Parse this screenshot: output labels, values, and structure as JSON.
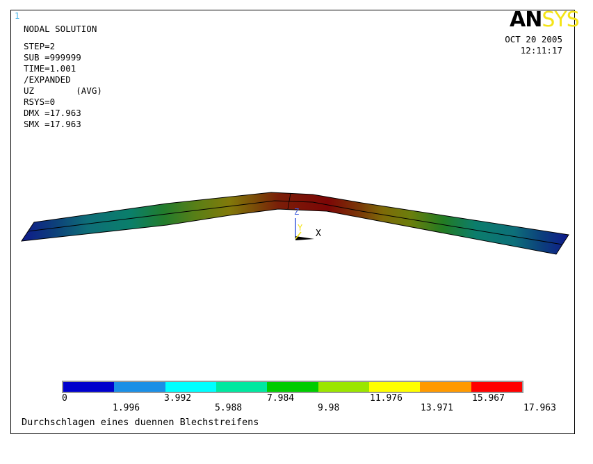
{
  "window_number": "1",
  "logo": {
    "part1": "AN",
    "part2": "SYS"
  },
  "info": {
    "title": "NODAL SOLUTION",
    "lines": [
      "STEP=2",
      "SUB =999999",
      "TIME=1.001",
      "/EXPANDED",
      "UZ        (AVG)",
      "RSYS=0",
      "DMX =17.963",
      "SMX =17.963"
    ]
  },
  "datetime": {
    "date": "OCT 20 2005",
    "time": "12:11:17"
  },
  "triad": {
    "z": "Z",
    "y": "Y",
    "x": "X"
  },
  "legend": {
    "colors": [
      "#0000cc",
      "#1a8fe6",
      "#00ffff",
      "#00e8a0",
      "#00cc00",
      "#9be600",
      "#ffff00",
      "#ff9900",
      "#ff0000"
    ],
    "ticks_top": [
      "0",
      "3.992",
      "7.984",
      "11.976",
      "15.967"
    ],
    "ticks_bottom": [
      "1.996",
      "5.988",
      "9.98",
      "13.971",
      "17.963"
    ]
  },
  "subtitle": "Durchschlagen eines duennen Blechstreifens"
}
